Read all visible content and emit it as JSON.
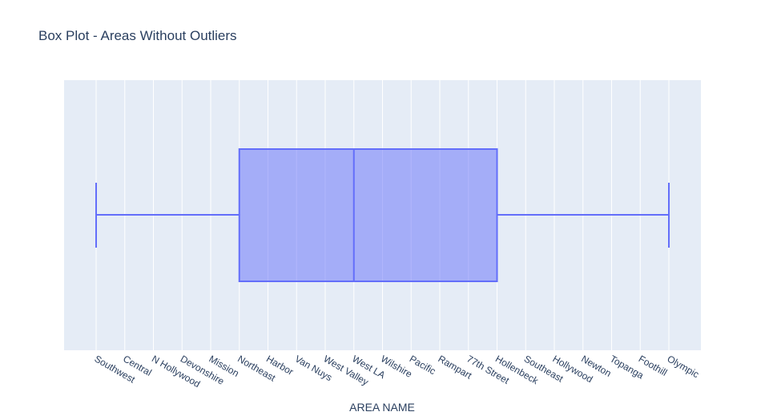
{
  "chart_data": {
    "type": "box",
    "title": "Box Plot - Areas Without Outliers",
    "x_label": "AREA NAME",
    "categories": [
      "Southwest",
      "Central",
      "N Hollywood",
      "Devonshire",
      "Mission",
      "Northeast",
      "Harbor",
      "Van Nuys",
      "West Valley",
      "West LA",
      "Wilshire",
      "Pacific",
      "Rampart",
      "77th Street",
      "Hollenbeck",
      "Southeast",
      "Hollywood",
      "Newton",
      "Topanga",
      "Foothill",
      "Olympic"
    ],
    "box": {
      "min": "Southwest",
      "q1": "Northeast",
      "median": "West LA",
      "q3": "Hollenbeck",
      "max": "Olympic"
    },
    "color": "#636efa",
    "grid": true
  }
}
